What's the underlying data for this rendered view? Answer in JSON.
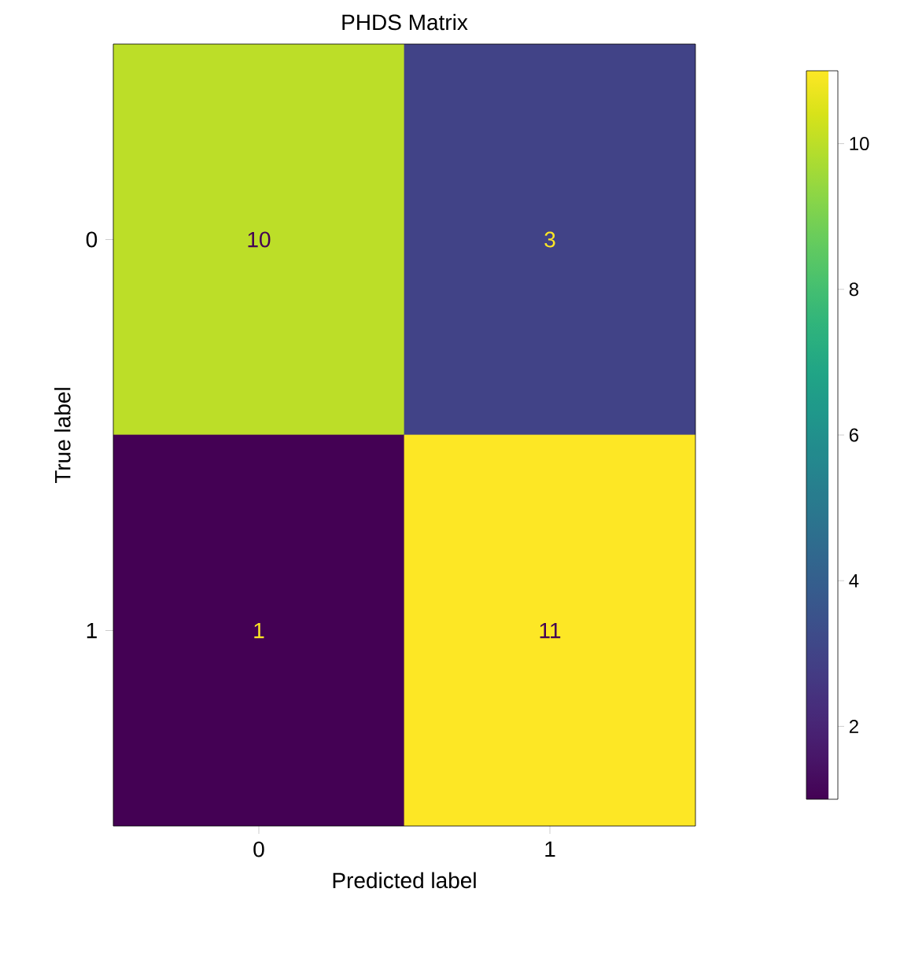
{
  "chart_data": {
    "type": "heatmap",
    "title": "PHDS Matrix",
    "xlabel": "Predicted label",
    "ylabel": "True label",
    "categories": [
      "0",
      "1"
    ],
    "y_categories": [
      "0",
      "1"
    ],
    "cells": [
      [
        10,
        3
      ],
      [
        1,
        11
      ]
    ],
    "clim": [
      1,
      11
    ],
    "cticks": [
      2,
      4,
      6,
      8,
      10
    ],
    "data_labels": true
  }
}
